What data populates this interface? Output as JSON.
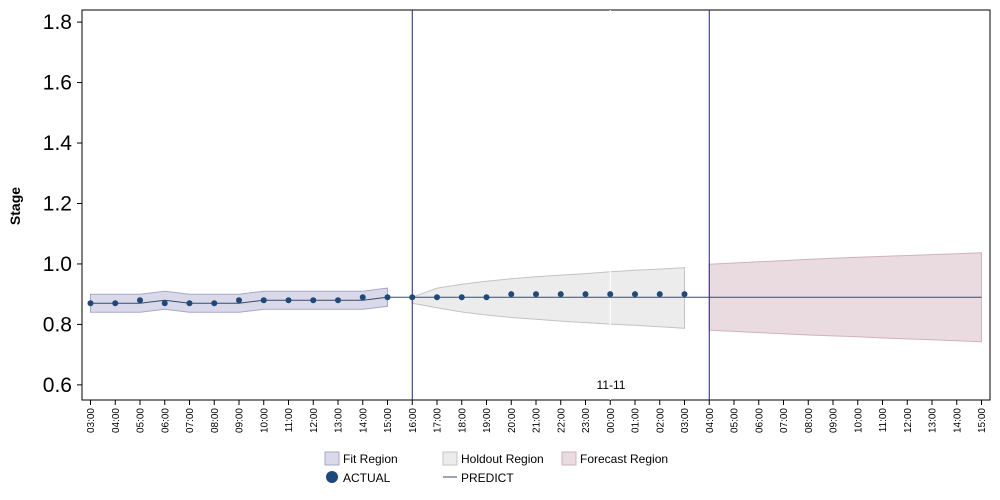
{
  "chart_data": {
    "type": "line",
    "ylabel": "Stage",
    "ylim": [
      0.55,
      1.84
    ],
    "yticks": [
      "0.6",
      "0.8",
      "1.0",
      "1.2",
      "1.4",
      "1.6",
      "1.8"
    ],
    "x_ticks": [
      "03:00",
      "04:00",
      "05:00",
      "06:00",
      "07:00",
      "08:00",
      "09:00",
      "10:00",
      "11:00",
      "12:00",
      "13:00",
      "14:00",
      "15:00",
      "16:00",
      "17:00",
      "18:00",
      "19:00",
      "20:00",
      "21:00",
      "22:00",
      "23:00",
      "00:00",
      "01:00",
      "02:00",
      "03:00",
      "04:00",
      "05:00",
      "06:00",
      "07:00",
      "08:00",
      "09:00",
      "10:00",
      "11:00",
      "12:00",
      "13:00",
      "14:00",
      "15:00"
    ],
    "date_annotation": "11-11",
    "actual": [
      0.87,
      0.87,
      0.88,
      0.87,
      0.87,
      0.87,
      0.88,
      0.88,
      0.88,
      0.88,
      0.88,
      0.89,
      0.89,
      0.89,
      0.89,
      0.89,
      0.89,
      0.9,
      0.9,
      0.9,
      0.9,
      0.9,
      0.9,
      0.9,
      0.9
    ],
    "predict": [
      0.87,
      0.87,
      0.87,
      0.88,
      0.87,
      0.87,
      0.87,
      0.88,
      0.88,
      0.88,
      0.88,
      0.88,
      0.89,
      0.89,
      0.89,
      0.89,
      0.89,
      0.89,
      0.89,
      0.89,
      0.89,
      0.89,
      0.89,
      0.89,
      0.89,
      0.89,
      0.89,
      0.89,
      0.89,
      0.89,
      0.89,
      0.89,
      0.89,
      0.89,
      0.89,
      0.89,
      0.89
    ],
    "fit_region": {
      "start": 0,
      "end": 12,
      "upper": [
        0.9,
        0.9,
        0.9,
        0.91,
        0.9,
        0.9,
        0.9,
        0.91,
        0.91,
        0.91,
        0.91,
        0.91,
        0.92
      ],
      "lower": [
        0.84,
        0.84,
        0.84,
        0.85,
        0.84,
        0.84,
        0.84,
        0.85,
        0.85,
        0.85,
        0.85,
        0.85,
        0.86
      ]
    },
    "holdout_region": {
      "start": 13,
      "end": 24,
      "upper": [
        0.89,
        0.92,
        0.933,
        0.943,
        0.951,
        0.958,
        0.963,
        0.968,
        0.974,
        0.979,
        0.983,
        0.988
      ],
      "lower": [
        0.87,
        0.855,
        0.841,
        0.831,
        0.823,
        0.817,
        0.811,
        0.806,
        0.801,
        0.797,
        0.792,
        0.787
      ]
    },
    "forecast_region": {
      "start": 25,
      "end": 36,
      "upper": [
        0.999,
        1.003,
        1.007,
        1.011,
        1.015,
        1.019,
        1.022,
        1.025,
        1.028,
        1.031,
        1.034,
        1.037
      ],
      "lower": [
        0.781,
        0.777,
        0.773,
        0.769,
        0.765,
        0.762,
        0.759,
        0.755,
        0.752,
        0.749,
        0.746,
        0.743
      ]
    },
    "reference_lines_at": [
      13,
      25
    ],
    "legend": {
      "fit": "Fit Region",
      "holdout": "Holdout Region",
      "forecast": "Forecast Region",
      "actual": "ACTUAL",
      "predict": "PREDICT"
    },
    "colors": {
      "fit_fill": "#d9d9ea",
      "fit_stroke": "#a7a7c9",
      "holdout_fill": "#ececec",
      "holdout_stroke": "#c3c3c3",
      "forecast_fill": "#eadbe0",
      "forecast_stroke": "#cfb2bc",
      "actual": "#1d4a7a",
      "predict": "#3a4a66",
      "refline": "#1a237e"
    }
  }
}
